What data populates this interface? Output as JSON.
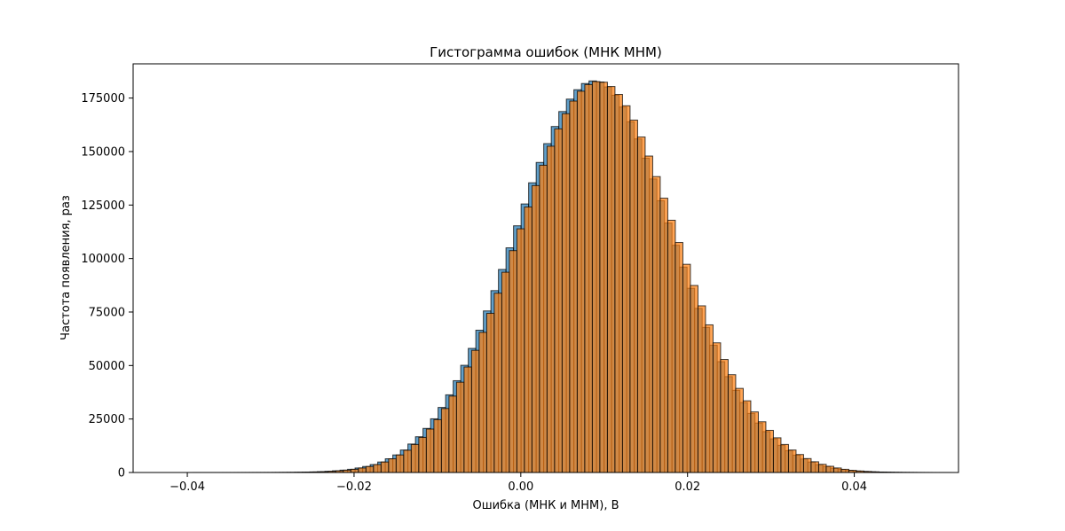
{
  "chart_data": {
    "type": "bar",
    "title": "Гистограмма ошибок (МНК МНМ)",
    "xlabel": "Ошибка (МНК и МНМ), В",
    "ylabel": "Частота появления, раз",
    "xlim": [
      -0.0465,
      0.0525
    ],
    "ylim": [
      0,
      191000
    ],
    "xticks": [
      -0.04,
      -0.02,
      0.0,
      0.02,
      0.04
    ],
    "xtick_labels": [
      "−0.04",
      "−0.02",
      "0.00",
      "0.02",
      "0.04"
    ],
    "yticks": [
      0,
      25000,
      50000,
      75000,
      100000,
      125000,
      150000,
      175000
    ],
    "ytick_labels": [
      "0",
      "25000",
      "50000",
      "75000",
      "100000",
      "125000",
      "150000",
      "175000"
    ],
    "grid": false,
    "legend": "none",
    "series": [
      {
        "color": "#1f77b4",
        "opacity": 0.7,
        "x_start": -0.0425,
        "bin_width": 0.000905,
        "values": [
          1,
          1,
          2,
          3,
          4,
          5,
          6,
          8,
          10,
          12,
          15,
          20,
          25,
          30,
          40,
          60,
          80,
          120,
          180,
          260,
          380,
          550,
          800,
          1100,
          1500,
          2100,
          2800,
          3700,
          4900,
          6400,
          8200,
          10500,
          13300,
          16700,
          20600,
          25100,
          30400,
          36300,
          42900,
          50100,
          58000,
          66500,
          75500,
          85000,
          94900,
          105000,
          115300,
          125500,
          135400,
          144900,
          153700,
          161700,
          168700,
          174500,
          178900,
          181800,
          183000,
          182500,
          180200,
          176300,
          170800,
          163900,
          155900,
          146900,
          137200,
          127000,
          116600,
          106200,
          96000,
          86100,
          76700,
          67800,
          59500,
          51800,
          44800,
          38400,
          32700,
          27600,
          23100,
          19100,
          15700,
          12700,
          10200,
          8100,
          6300,
          4900,
          3700,
          2800,
          2000,
          1400,
          1000,
          700,
          480,
          320,
          210,
          140,
          90,
          60,
          40,
          25,
          16,
          10,
          6,
          4,
          2,
          1,
          1,
          1,
          1
        ]
      },
      {
        "color": "#ff7f0e",
        "opacity": 0.7,
        "x_start": -0.0421,
        "bin_width": 0.000905,
        "values": [
          1,
          1,
          2,
          3,
          4,
          5,
          6,
          8,
          10,
          12,
          15,
          20,
          25,
          30,
          40,
          60,
          80,
          120,
          180,
          260,
          380,
          550,
          800,
          1100,
          1500,
          2100,
          2800,
          3700,
          4900,
          6400,
          8200,
          10400,
          13100,
          16400,
          20300,
          24700,
          29900,
          35700,
          42200,
          49300,
          57100,
          65500,
          74400,
          83800,
          93600,
          103700,
          113900,
          124100,
          134100,
          143600,
          152500,
          160600,
          167700,
          173600,
          178200,
          181300,
          182700,
          182400,
          180400,
          176700,
          171400,
          164700,
          156800,
          147900,
          138300,
          128200,
          117900,
          107500,
          97300,
          87400,
          77900,
          69000,
          60600,
          52800,
          45700,
          39300,
          33500,
          28300,
          23700,
          19700,
          16200,
          13100,
          10500,
          8400,
          6500,
          5000,
          3800,
          2900,
          2100,
          1500,
          1000,
          700,
          480,
          320,
          210,
          140,
          90,
          60,
          40,
          25,
          16,
          10,
          6,
          4,
          2,
          1,
          1,
          1,
          1
        ]
      }
    ]
  }
}
